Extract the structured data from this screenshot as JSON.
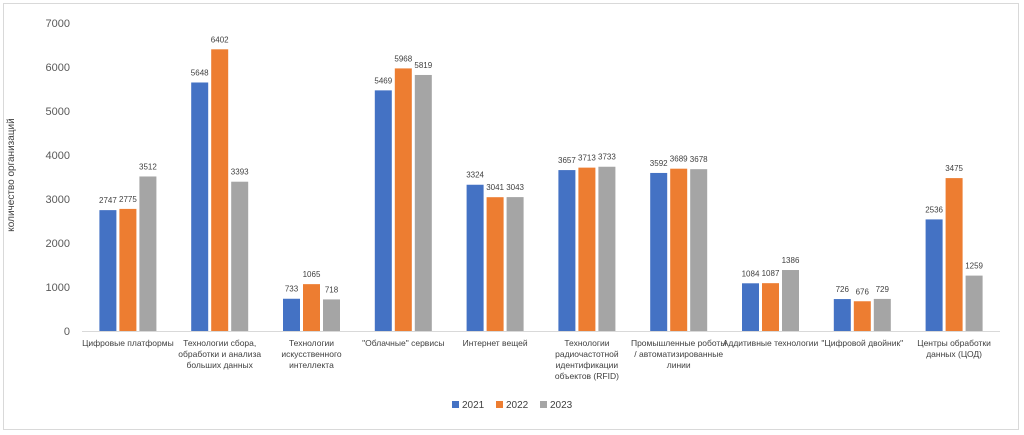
{
  "chart_data": {
    "type": "bar",
    "title": "",
    "xlabel": "",
    "ylabel": "количество организаций",
    "ylim": [
      0,
      7000
    ],
    "yticks": [
      0,
      1000,
      2000,
      3000,
      4000,
      5000,
      6000,
      7000
    ],
    "grid": false,
    "legend_position": "bottom-center",
    "categories": [
      [
        "Цифровые платформы"
      ],
      [
        "Технологии сбора,",
        "обработки и анализа",
        "больших данных"
      ],
      [
        "Технологии",
        "искусственного",
        "интеллекта"
      ],
      [
        "\"Облачные\" сервисы"
      ],
      [
        "Интернет вещей"
      ],
      [
        "Технологии",
        "радиочастотной",
        "идентификации",
        "объектов (RFID)"
      ],
      [
        "Промышленные роботы",
        "/ автоматизированные",
        "линии"
      ],
      [
        "Аддитивные технологии"
      ],
      [
        "\"Цифровой двойник\""
      ],
      [
        "Центры обработки",
        "данных (ЦОД)"
      ]
    ],
    "series": [
      {
        "name": "2021",
        "color": "#4472c4",
        "values": [
          2747,
          5648,
          733,
          5469,
          3324,
          3657,
          3592,
          1084,
          726,
          2536
        ]
      },
      {
        "name": "2022",
        "color": "#ed7d31",
        "values": [
          2775,
          6402,
          1065,
          5968,
          3041,
          3713,
          3689,
          1087,
          676,
          3475
        ]
      },
      {
        "name": "2023",
        "color": "#a5a5a5",
        "values": [
          3512,
          3393,
          718,
          5819,
          3043,
          3733,
          3678,
          1386,
          729,
          1259
        ]
      }
    ]
  }
}
